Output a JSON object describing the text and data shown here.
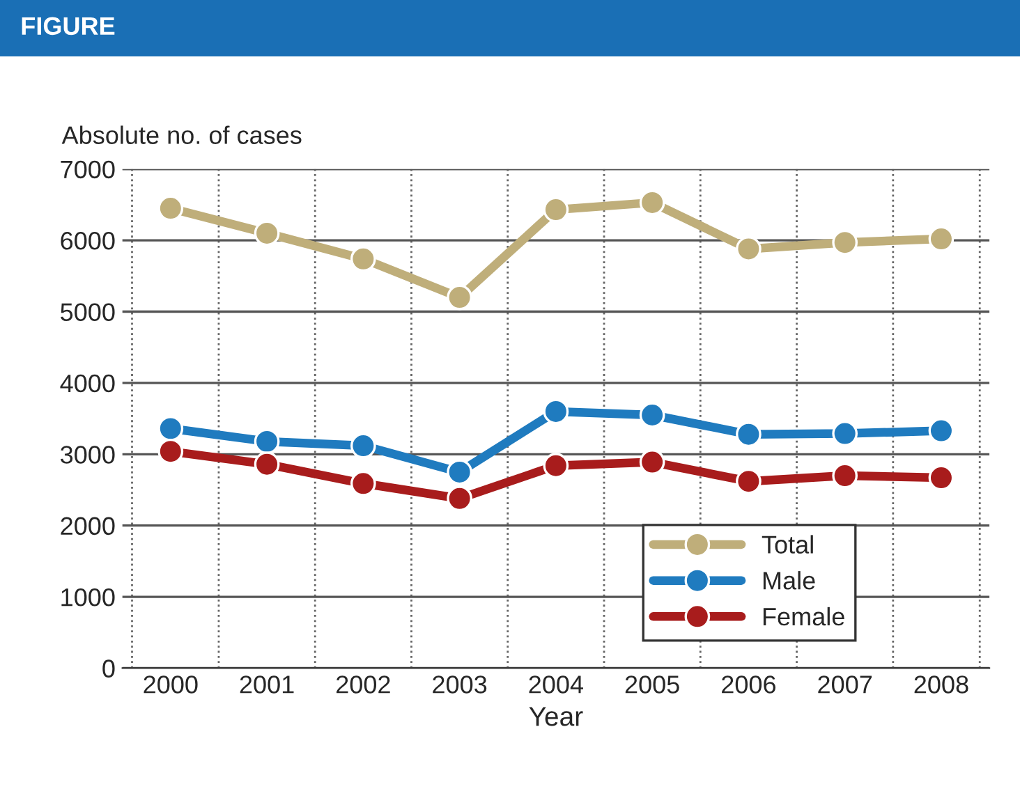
{
  "chart_data": {
    "type": "line",
    "xlabel": "Year",
    "ylabel": "Absolute no. of cases",
    "annotations": [
      "FIGURE"
    ],
    "categories": [
      "2000",
      "2001",
      "2002",
      "2003",
      "2004",
      "2005",
      "2006",
      "2007",
      "2008"
    ],
    "series": [
      {
        "name": "Total",
        "color": "#bfae7a",
        "values": [
          6450,
          6100,
          5740,
          5200,
          6430,
          6530,
          5880,
          5970,
          6020
        ]
      },
      {
        "name": "Male",
        "color": "#1f7bbf",
        "values": [
          3360,
          3180,
          3120,
          2750,
          3600,
          3550,
          3280,
          3290,
          3330
        ]
      },
      {
        "name": "Female",
        "color": "#a81c1c",
        "values": [
          3040,
          2860,
          2590,
          2380,
          2840,
          2890,
          2620,
          2700,
          2670
        ]
      }
    ],
    "ylim": [
      0,
      7000
    ],
    "yticks": [
      0,
      1000,
      2000,
      3000,
      4000,
      5000,
      6000,
      7000
    ],
    "grid": true,
    "legend": "bottom right",
    "marker": "circle",
    "line_style": "solid"
  }
}
